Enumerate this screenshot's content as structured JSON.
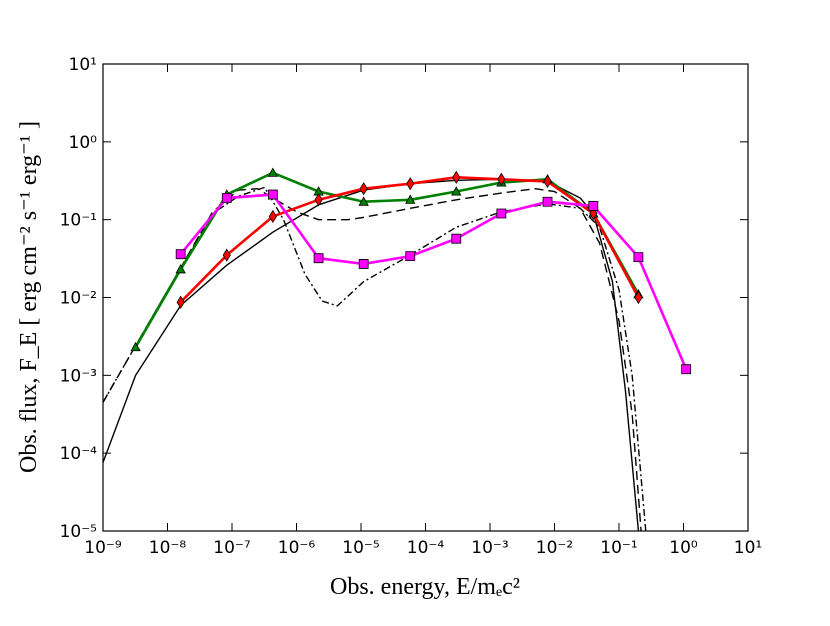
{
  "chart_data": {
    "type": "line",
    "xscale": "log",
    "yscale": "log",
    "xlabel": "Obs. energy, E/mₑc²",
    "ylabel": "Obs. flux, F_E [ erg cm⁻² s⁻¹ erg⁻¹ ]",
    "xlim": [
      1e-09,
      10
    ],
    "ylim": [
      1e-05,
      10
    ],
    "xticks": [
      {
        "value": 1e-09,
        "label": "10⁻⁹"
      },
      {
        "value": 1e-08,
        "label": "10⁻⁸"
      },
      {
        "value": 1e-07,
        "label": "10⁻⁷"
      },
      {
        "value": 1e-06,
        "label": "10⁻⁶"
      },
      {
        "value": 1e-05,
        "label": "10⁻⁵"
      },
      {
        "value": 0.0001,
        "label": "10⁻⁴"
      },
      {
        "value": 0.001,
        "label": "10⁻³"
      },
      {
        "value": 0.01,
        "label": "10⁻²"
      },
      {
        "value": 0.1,
        "label": "10⁻¹"
      },
      {
        "value": 1,
        "label": "10⁰"
      },
      {
        "value": 10,
        "label": "10¹"
      }
    ],
    "yticks": [
      {
        "value": 1e-05,
        "label": "10⁻⁵"
      },
      {
        "value": 0.0001,
        "label": "10⁻⁴"
      },
      {
        "value": 0.001,
        "label": "10⁻³"
      },
      {
        "value": 0.01,
        "label": "10⁻²"
      },
      {
        "value": 0.1,
        "label": "10⁻¹"
      },
      {
        "value": 1,
        "label": "10⁰"
      },
      {
        "value": 10,
        "label": "10¹"
      }
    ],
    "series": [
      {
        "color": "#000000",
        "linestyle": "solid",
        "marker": null,
        "x": [
          1e-09,
          3.2e-09,
          1.6e-08,
          8.3e-08,
          4.3e-07,
          2.2e-06,
          1.1e-05,
          5.8e-05,
          0.0003,
          0.0015,
          0.0078,
          0.025,
          0.04,
          0.079,
          0.126,
          0.2
        ],
        "values": [
          7.6e-05,
          0.001,
          0.0079,
          0.026,
          0.069,
          0.155,
          0.24,
          0.29,
          0.32,
          0.33,
          0.31,
          0.19,
          0.12,
          0.016,
          0.00063,
          1e-05
        ]
      },
      {
        "color": "#000000",
        "linestyle": "dashed",
        "marker": null,
        "x": [
          1e-09,
          3.2e-09,
          1.6e-08,
          5e-08,
          1.26e-07,
          2.5e-07,
          4.3e-07,
          1e-06,
          2.2e-06,
          6.3e-06,
          1.1e-05,
          5.8e-05,
          0.0003,
          0.0015,
          0.005,
          0.01,
          0.025,
          0.05,
          0.1,
          0.16,
          0.22
        ],
        "values": [
          0.00045,
          0.0024,
          0.024,
          0.126,
          0.24,
          0.25,
          0.19,
          0.126,
          0.1,
          0.1,
          0.107,
          0.14,
          0.18,
          0.22,
          0.25,
          0.23,
          0.14,
          0.05,
          0.005,
          0.00032,
          1e-05
        ]
      },
      {
        "color": "#000000",
        "linestyle": "dashdot",
        "marker": null,
        "x": [
          1e-09,
          3.2e-09,
          1.6e-08,
          5e-08,
          1.26e-07,
          3.2e-07,
          6.3e-07,
          1.35e-06,
          2.5e-06,
          4.3e-06,
          1.1e-05,
          5.8e-05,
          0.0003,
          0.0015,
          0.0078,
          0.025,
          0.05,
          0.1,
          0.16,
          0.26
        ],
        "values": [
          0.00045,
          0.0024,
          0.024,
          0.12,
          0.2,
          0.26,
          0.1,
          0.02,
          0.009,
          0.0078,
          0.016,
          0.035,
          0.08,
          0.126,
          0.16,
          0.14,
          0.08,
          0.0126,
          0.001,
          1e-05
        ]
      },
      {
        "color": "#008000",
        "linestyle": "solid",
        "marker": "triangle",
        "x": [
          3.2e-09,
          1.6e-08,
          8.3e-08,
          4.3e-07,
          2.2e-06,
          1.1e-05,
          5.8e-05,
          0.0003,
          0.0015,
          0.0078,
          0.04,
          0.2
        ],
        "values": [
          0.0023,
          0.023,
          0.21,
          0.4,
          0.23,
          0.17,
          0.18,
          0.23,
          0.3,
          0.33,
          0.12,
          0.011
        ]
      },
      {
        "color": "#ff0000",
        "linestyle": "solid",
        "marker": "diamond",
        "x": [
          1.6e-08,
          8.3e-08,
          4.3e-07,
          2.2e-06,
          1.1e-05,
          5.8e-05,
          0.0003,
          0.0015,
          0.0078,
          0.04,
          0.2
        ],
        "values": [
          0.0087,
          0.035,
          0.11,
          0.18,
          0.25,
          0.29,
          0.35,
          0.33,
          0.31,
          0.12,
          0.01
        ]
      },
      {
        "color": "#ff00ff",
        "linestyle": "solid",
        "marker": "square",
        "x": [
          1.6e-08,
          8.3e-08,
          4.3e-07,
          2.2e-06,
          1.1e-05,
          5.8e-05,
          0.0003,
          0.0015,
          0.0078,
          0.04,
          0.2,
          1.1
        ],
        "values": [
          0.036,
          0.19,
          0.21,
          0.032,
          0.027,
          0.034,
          0.057,
          0.12,
          0.17,
          0.15,
          0.033,
          0.0012
        ]
      }
    ]
  }
}
